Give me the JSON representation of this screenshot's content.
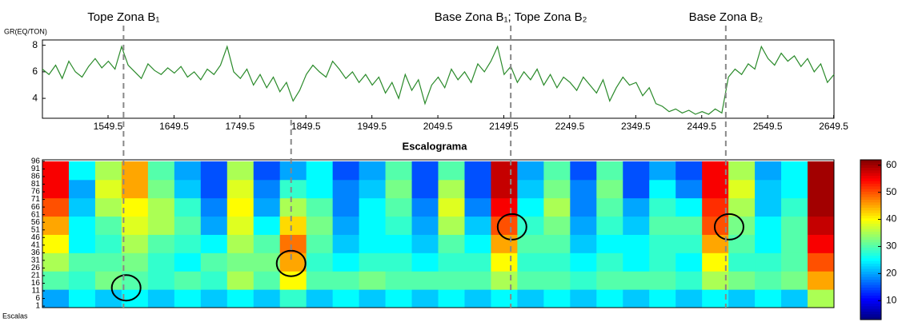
{
  "chart_data": [
    {
      "type": "line",
      "ylabel": "GR(EQ/TON)",
      "x": [
        1450,
        1460,
        1470,
        1480,
        1490,
        1500,
        1510,
        1520,
        1530,
        1540,
        1550,
        1560,
        1570,
        1580,
        1590,
        1600,
        1610,
        1620,
        1630,
        1640,
        1650,
        1660,
        1670,
        1680,
        1690,
        1700,
        1710,
        1720,
        1730,
        1740,
        1750,
        1760,
        1770,
        1780,
        1790,
        1800,
        1810,
        1820,
        1830,
        1840,
        1850,
        1860,
        1870,
        1880,
        1890,
        1900,
        1910,
        1920,
        1930,
        1940,
        1950,
        1960,
        1970,
        1980,
        1990,
        2000,
        2010,
        2020,
        2030,
        2040,
        2050,
        2060,
        2070,
        2080,
        2090,
        2100,
        2110,
        2120,
        2130,
        2140,
        2150,
        2160,
        2170,
        2180,
        2190,
        2200,
        2210,
        2220,
        2230,
        2240,
        2250,
        2260,
        2270,
        2280,
        2290,
        2300,
        2310,
        2320,
        2330,
        2340,
        2350,
        2360,
        2370,
        2380,
        2390,
        2400,
        2410,
        2420,
        2430,
        2440,
        2450,
        2460,
        2470,
        2480,
        2490,
        2500,
        2510,
        2520,
        2530,
        2540,
        2550,
        2560,
        2570,
        2580,
        2590,
        2600,
        2610,
        2620,
        2630,
        2640,
        2650
      ],
      "series": [
        {
          "color": "#2a8a2a",
          "values": [
            6.2,
            5.8,
            6.5,
            5.5,
            6.8,
            6.0,
            5.6,
            6.4,
            7.0,
            6.3,
            6.8,
            6.2,
            7.9,
            6.5,
            6.0,
            5.5,
            6.6,
            6.1,
            5.8,
            6.3,
            5.9,
            6.4,
            5.6,
            6.0,
            5.4,
            6.2,
            5.8,
            6.5,
            7.9,
            6.0,
            5.5,
            6.2,
            5.0,
            5.8,
            4.8,
            5.6,
            4.5,
            5.2,
            3.8,
            4.6,
            5.8,
            6.5,
            6.0,
            5.6,
            6.8,
            6.2,
            5.5,
            6.0,
            5.2,
            5.8,
            5.0,
            5.6,
            4.4,
            5.2,
            4.0,
            5.8,
            4.6,
            5.4,
            3.6,
            5.0,
            5.6,
            4.8,
            6.2,
            5.4,
            6.0,
            5.2,
            6.6,
            6.0,
            6.8,
            7.9,
            5.8,
            6.4,
            5.2,
            6.0,
            5.4,
            6.2,
            5.0,
            5.8,
            4.8,
            5.6,
            5.2,
            4.6,
            5.6,
            5.0,
            4.4,
            5.4,
            3.8,
            4.8,
            5.6,
            5.0,
            5.2,
            4.2,
            4.8,
            3.6,
            3.4,
            3.0,
            3.2,
            2.9,
            3.1,
            2.8,
            3.0,
            2.8,
            3.2,
            2.9,
            5.6,
            6.2,
            5.8,
            6.6,
            6.2,
            7.9,
            7.0,
            6.5,
            7.4,
            6.8,
            7.2,
            6.4,
            7.0,
            6.0,
            6.6,
            5.2,
            5.8
          ]
        }
      ],
      "xlim": [
        1450,
        2650
      ],
      "xticks": [
        1549.5,
        1649.5,
        1749.5,
        1849.5,
        1949.5,
        2049.5,
        2149.5,
        2249.5,
        2349.5,
        2449.5,
        2549.5,
        2649.5
      ],
      "ylim": [
        2.5,
        8.4
      ],
      "yticks": [
        4,
        6,
        8
      ],
      "markers": [
        {
          "x": 1573,
          "label": "Tope Zona B₁"
        },
        {
          "x": 1827
        },
        {
          "x": 2160,
          "label": "Base Zona B₁; Tope Zona B₂"
        },
        {
          "x": 2486,
          "label": "Base Zona B₂"
        }
      ]
    },
    {
      "type": "heatmap",
      "title": "Escalograma",
      "ylabel": "Escalas",
      "colormap": "jet",
      "xlim": [
        1450,
        2650
      ],
      "ylim": [
        0,
        97
      ],
      "yticks": [
        1,
        6,
        11,
        16,
        21,
        26,
        31,
        36,
        41,
        46,
        51,
        56,
        61,
        66,
        71,
        76,
        81,
        86,
        91,
        96
      ],
      "x_edges": [
        1450,
        1490,
        1530,
        1570,
        1610,
        1650,
        1690,
        1730,
        1770,
        1810,
        1850,
        1890,
        1930,
        1970,
        2010,
        2050,
        2090,
        2130,
        2170,
        2210,
        2250,
        2290,
        2330,
        2370,
        2410,
        2450,
        2490,
        2530,
        2570,
        2610,
        2650
      ],
      "y_edges": [
        0,
        12,
        24,
        36,
        48,
        60,
        72,
        84,
        96
      ],
      "values": [
        [
          20,
          25,
          22,
          25,
          22,
          25,
          22,
          25,
          22,
          28,
          22,
          25,
          22,
          25,
          22,
          25,
          22,
          25,
          22,
          25,
          22,
          25,
          22,
          25,
          22,
          25,
          22,
          25,
          22,
          35
        ],
        [
          30,
          28,
          32,
          30,
          28,
          30,
          28,
          35,
          30,
          40,
          30,
          30,
          32,
          30,
          30,
          30,
          30,
          35,
          30,
          30,
          28,
          30,
          30,
          30,
          28,
          35,
          32,
          30,
          32,
          45
        ],
        [
          35,
          30,
          30,
          32,
          28,
          25,
          30,
          32,
          32,
          45,
          28,
          25,
          28,
          28,
          25,
          28,
          28,
          40,
          28,
          28,
          25,
          28,
          25,
          28,
          25,
          40,
          28,
          28,
          30,
          50
        ],
        [
          40,
          25,
          28,
          35,
          30,
          28,
          25,
          35,
          30,
          48,
          30,
          22,
          25,
          25,
          22,
          30,
          25,
          45,
          30,
          30,
          22,
          25,
          25,
          28,
          28,
          45,
          30,
          25,
          30,
          55
        ],
        [
          45,
          25,
          30,
          38,
          35,
          30,
          20,
          38,
          25,
          42,
          32,
          20,
          25,
          28,
          20,
          35,
          22,
          50,
          28,
          32,
          20,
          28,
          22,
          30,
          30,
          50,
          32,
          25,
          30,
          58
        ],
        [
          50,
          22,
          35,
          40,
          35,
          28,
          18,
          40,
          20,
          35,
          30,
          18,
          25,
          30,
          18,
          38,
          18,
          55,
          25,
          35,
          18,
          30,
          20,
          28,
          25,
          52,
          35,
          22,
          28,
          60
        ],
        [
          55,
          20,
          38,
          45,
          32,
          22,
          15,
          38,
          18,
          28,
          25,
          18,
          22,
          32,
          15,
          35,
          15,
          58,
          22,
          32,
          18,
          32,
          15,
          25,
          18,
          55,
          38,
          22,
          25,
          60
        ],
        [
          55,
          25,
          35,
          45,
          30,
          20,
          15,
          35,
          15,
          20,
          25,
          15,
          20,
          30,
          15,
          30,
          15,
          58,
          20,
          30,
          15,
          30,
          15,
          20,
          15,
          55,
          35,
          20,
          25,
          60
        ]
      ],
      "clim": [
        3,
        62
      ],
      "cticks": [
        10,
        20,
        30,
        40,
        50,
        60
      ],
      "circles": [
        {
          "x": 1577,
          "y": 13
        },
        {
          "x": 1827,
          "y": 29
        },
        {
          "x": 2162,
          "y": 53
        },
        {
          "x": 2491,
          "y": 53
        }
      ]
    }
  ]
}
